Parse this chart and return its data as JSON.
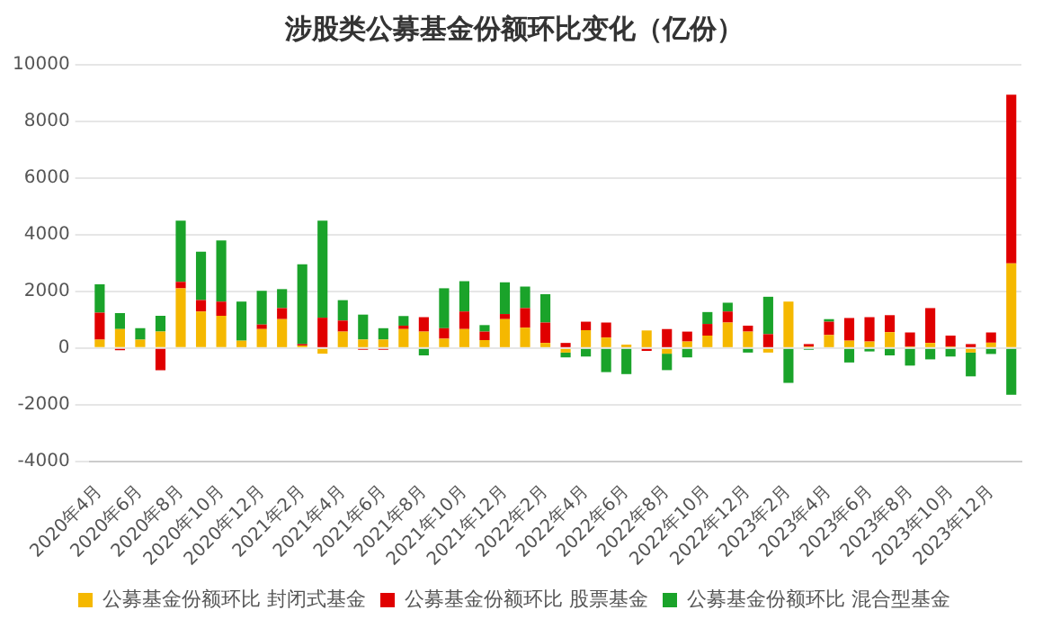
{
  "chart_data": {
    "type": "bar",
    "title": "涉股类公募基金份额环比变化（亿份）",
    "stacked": true,
    "categories": [
      "2020年4月",
      null,
      "2020年6月",
      null,
      "2020年8月",
      null,
      "2020年10月",
      null,
      "2020年12月",
      null,
      "2021年2月",
      null,
      "2021年4月",
      null,
      "2021年6月",
      null,
      "2021年8月",
      null,
      "2021年10月",
      null,
      "2021年12月",
      null,
      "2022年2月",
      null,
      "2022年4月",
      null,
      "2022年6月",
      null,
      "2022年8月",
      null,
      "2022年10月",
      null,
      "2022年12月",
      null,
      "2023年2月",
      null,
      "2023年4月",
      null,
      "2023年6月",
      null,
      "2023年8月",
      null,
      "2023年10月",
      null,
      "2023年12月",
      null
    ],
    "series": [
      {
        "name": "公募基金份额环比 封闭式基金",
        "color": "#f5b800",
        "values": [
          300,
          670,
          300,
          580,
          2110,
          1290,
          1140,
          260,
          670,
          1020,
          90,
          -200,
          580,
          300,
          300,
          670,
          580,
          330,
          670,
          280,
          1020,
          720,
          180,
          -160,
          630,
          370,
          120,
          620,
          -200,
          230,
          440,
          900,
          580,
          -160,
          1640,
          50,
          460,
          260,
          230,
          560,
          50,
          180,
          50,
          -160,
          190,
          2990
        ]
      },
      {
        "name": "公募基金份额环比 股票基金",
        "color": "#e00000",
        "values": [
          950,
          -80,
          0,
          -780,
          230,
          400,
          500,
          0,
          160,
          390,
          50,
          1070,
          390,
          -60,
          -60,
          120,
          510,
          370,
          620,
          300,
          180,
          690,
          720,
          180,
          300,
          530,
          0,
          -100,
          670,
          350,
          410,
          390,
          210,
          490,
          0,
          90,
          470,
          800,
          860,
          600,
          500,
          1230,
          390,
          140,
          360,
          5950
        ]
      },
      {
        "name": "公募基金份额环比 混合型基金",
        "color": "#1aa32a",
        "values": [
          1000,
          560,
          400,
          560,
          2160,
          1710,
          2160,
          1380,
          1190,
          670,
          2820,
          3430,
          720,
          880,
          400,
          340,
          -260,
          1410,
          1070,
          230,
          1120,
          760,
          1000,
          -170,
          -300,
          -850,
          -920,
          0,
          -580,
          -330,
          420,
          310,
          -160,
          1320,
          -1230,
          -60,
          90,
          -510,
          -120,
          -260,
          -620,
          -400,
          -300,
          -840,
          -210,
          -1650
        ]
      }
    ],
    "ylim": [
      -4000,
      10000
    ],
    "yticks": [
      -4000,
      -2000,
      0,
      2000,
      4000,
      6000,
      8000,
      10000
    ],
    "grid": "y",
    "legend": "bottom"
  }
}
